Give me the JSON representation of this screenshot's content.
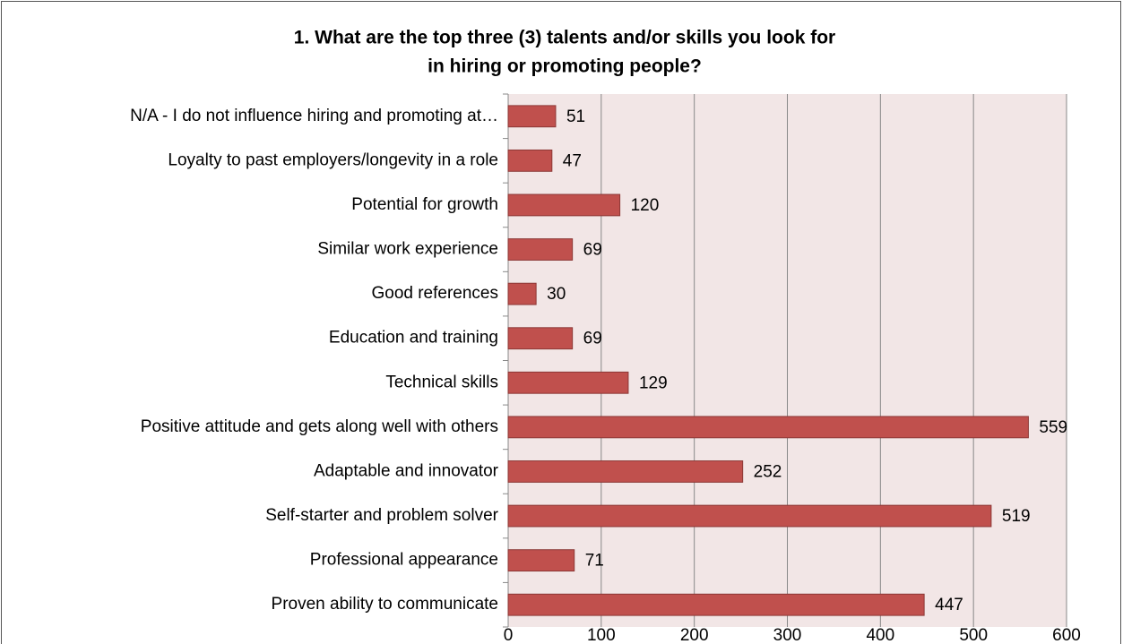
{
  "chart_data": {
    "type": "bar",
    "orientation": "horizontal",
    "title": [
      "1. What are the top three (3) talents and/or skills you look for",
      "in hiring or promoting people?"
    ],
    "categories": [
      "N/A - I do not influence hiring and promoting at…",
      "Loyalty to past employers/longevity in a role",
      "Potential for growth",
      "Similar work experience",
      "Good references",
      "Education and training",
      "Technical skills",
      "Positive attitude and gets along well with others",
      "Adaptable and innovator",
      "Self-starter and problem solver",
      "Professional appearance",
      "Proven ability to communicate"
    ],
    "values": [
      51,
      47,
      120,
      69,
      30,
      69,
      129,
      559,
      252,
      519,
      71,
      447
    ],
    "color": "#c0504d",
    "xlim": [
      0,
      600
    ],
    "xticks": [
      0,
      100,
      200,
      300,
      400,
      500,
      600
    ],
    "grid": true
  }
}
